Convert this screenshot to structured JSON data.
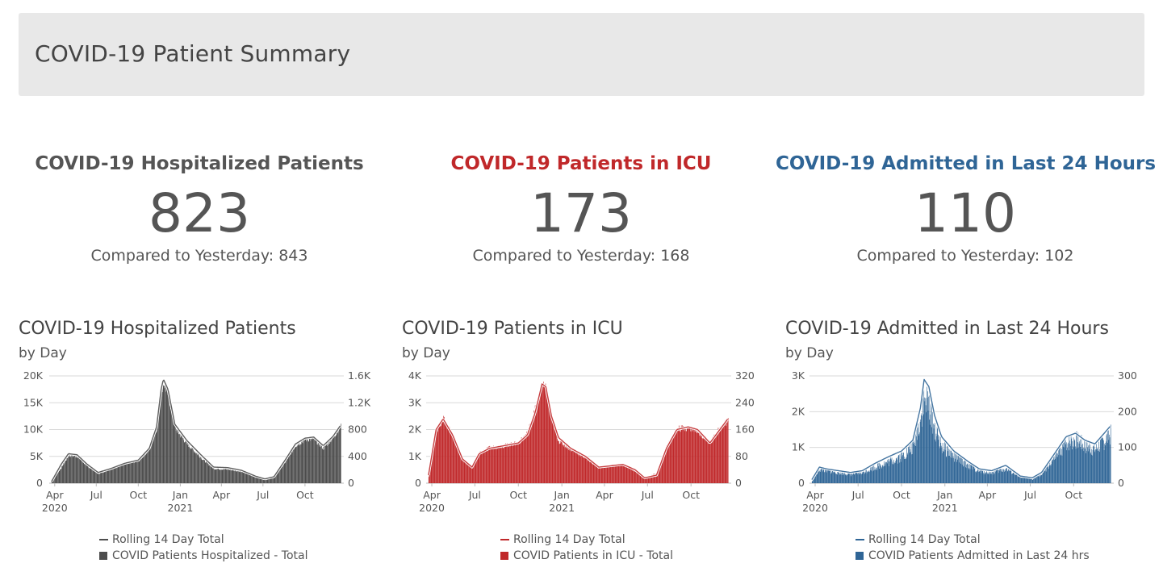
{
  "header": {
    "title": "COVID-19 Patient Summary"
  },
  "kpis": [
    {
      "title": "COVID-19 Hospitalized Patients",
      "value": "823",
      "compare": "Compared to Yesterday: 843",
      "color": "#555555"
    },
    {
      "title": "COVID-19 Patients in ICU",
      "value": "173",
      "compare": "Compared to Yesterday: 168",
      "color": "#c0282a"
    },
    {
      "title": "COVID-19 Admitted in Last 24 Hours",
      "value": "110",
      "compare": "Compared to Yesterday: 102",
      "color": "#2f6596"
    }
  ],
  "chart_data": [
    {
      "type": "bar",
      "title": "COVID-19 Hospitalized Patients",
      "subtitle": "by Day",
      "color": "#4d4d4d",
      "x_ticks": [
        "Apr",
        "Jul",
        "Oct",
        "Jan",
        "Apr",
        "Jul",
        "Oct"
      ],
      "x_years": [
        "2020",
        "2021"
      ],
      "y_left_ticks": [
        "0",
        "5K",
        "10K",
        "15K",
        "20K"
      ],
      "y_right_ticks": [
        "0",
        "400",
        "800",
        "1.2K",
        "1.6K"
      ],
      "y_left_range": [
        0,
        20000
      ],
      "y_right_range": [
        0,
        1600
      ],
      "series": [
        {
          "name": "Rolling 14 Day Total",
          "kind": "line",
          "axis": "left",
          "x": [
            "2020-03-25",
            "2020-04-15",
            "2020-05-01",
            "2020-05-20",
            "2020-06-10",
            "2020-07-05",
            "2020-08-01",
            "2020-09-01",
            "2020-10-01",
            "2020-10-25",
            "2020-11-10",
            "2020-11-20",
            "2020-11-25",
            "2020-12-05",
            "2020-12-20",
            "2021-01-15",
            "2021-02-15",
            "2021-03-15",
            "2021-04-15",
            "2021-05-15",
            "2021-06-15",
            "2021-07-05",
            "2021-07-25",
            "2021-08-20",
            "2021-09-10",
            "2021-10-01",
            "2021-10-20",
            "2021-11-10",
            "2021-12-01",
            "2021-12-18"
          ],
          "y": [
            300,
            3500,
            5500,
            5300,
            3600,
            2000,
            2700,
            3700,
            4300,
            6500,
            10500,
            17500,
            19400,
            17500,
            11000,
            8000,
            5300,
            3000,
            2900,
            2400,
            1300,
            800,
            1200,
            4500,
            7300,
            8400,
            8600,
            7000,
            8700,
            10800
          ]
        },
        {
          "name": "COVID Patients Hospitalized - Total",
          "kind": "bar",
          "axis": "right",
          "x": [
            "2020-03-25",
            "2020-04-15",
            "2020-05-01",
            "2020-05-20",
            "2020-06-10",
            "2020-07-05",
            "2020-08-01",
            "2020-09-01",
            "2020-10-01",
            "2020-10-25",
            "2020-11-10",
            "2020-11-20",
            "2020-11-25",
            "2020-12-05",
            "2020-12-20",
            "2021-01-15",
            "2021-02-15",
            "2021-03-15",
            "2021-04-15",
            "2021-05-15",
            "2021-06-15",
            "2021-07-05",
            "2021-07-25",
            "2021-08-20",
            "2021-09-10",
            "2021-10-01",
            "2021-10-20",
            "2021-11-10",
            "2021-12-01",
            "2021-12-18"
          ],
          "y": [
            20,
            230,
            410,
            400,
            260,
            140,
            210,
            290,
            330,
            500,
            820,
            1350,
            1500,
            1320,
            820,
            590,
            380,
            215,
            205,
            170,
            95,
            55,
            90,
            330,
            560,
            650,
            660,
            520,
            680,
            850
          ]
        }
      ]
    },
    {
      "type": "bar",
      "title": "COVID-19 Patients in ICU",
      "subtitle": "by Day",
      "color": "#c0282a",
      "x_ticks": [
        "Apr",
        "Jul",
        "Oct",
        "Jan",
        "Apr",
        "Jul",
        "Oct"
      ],
      "x_years": [
        "2020",
        "2021"
      ],
      "y_left_ticks": [
        "0",
        "1K",
        "2K",
        "3K",
        "4K"
      ],
      "y_right_ticks": [
        "0",
        "80",
        "160",
        "240",
        "320"
      ],
      "y_left_range": [
        0,
        4000
      ],
      "y_right_range": [
        0,
        320
      ],
      "series": [
        {
          "name": "Rolling 14 Day Total",
          "kind": "line",
          "axis": "left",
          "x": [
            "2020-03-25",
            "2020-04-10",
            "2020-04-25",
            "2020-05-15",
            "2020-06-05",
            "2020-06-25",
            "2020-07-10",
            "2020-08-01",
            "2020-09-01",
            "2020-10-01",
            "2020-10-20",
            "2020-11-05",
            "2020-11-20",
            "2020-11-28",
            "2020-12-10",
            "2020-12-25",
            "2021-01-20",
            "2021-02-20",
            "2021-03-20",
            "2021-04-15",
            "2021-05-10",
            "2021-06-05",
            "2021-06-25",
            "2021-07-20",
            "2021-08-10",
            "2021-09-01",
            "2021-09-25",
            "2021-10-15",
            "2021-11-10",
            "2021-12-01",
            "2021-12-18"
          ],
          "y": [
            300,
            2000,
            2400,
            1800,
            900,
            600,
            1100,
            1300,
            1400,
            1500,
            1800,
            2600,
            3700,
            3600,
            2500,
            1700,
            1300,
            1000,
            600,
            650,
            700,
            500,
            200,
            300,
            1300,
            2000,
            2100,
            2000,
            1500,
            2000,
            2400
          ]
        },
        {
          "name": "COVID Patients in ICU - Total",
          "kind": "bar",
          "axis": "right",
          "x": [
            "2020-03-25",
            "2020-04-10",
            "2020-04-25",
            "2020-05-15",
            "2020-06-05",
            "2020-06-25",
            "2020-07-10",
            "2020-08-01",
            "2020-09-01",
            "2020-10-01",
            "2020-10-20",
            "2020-11-05",
            "2020-11-20",
            "2020-11-28",
            "2020-12-10",
            "2020-12-25",
            "2021-01-20",
            "2021-02-20",
            "2021-03-20",
            "2021-04-15",
            "2021-05-10",
            "2021-06-05",
            "2021-06-25",
            "2021-07-20",
            "2021-08-10",
            "2021-09-01",
            "2021-09-25",
            "2021-10-15",
            "2021-11-10",
            "2021-12-01",
            "2021-12-18"
          ],
          "y": [
            20,
            155,
            195,
            140,
            70,
            50,
            90,
            105,
            112,
            120,
            150,
            220,
            290,
            280,
            190,
            125,
            100,
            75,
            45,
            52,
            55,
            35,
            15,
            30,
            110,
            162,
            165,
            155,
            120,
            165,
            185
          ]
        }
      ]
    },
    {
      "type": "bar",
      "title": "COVID-19 Admitted in Last 24 Hours",
      "subtitle": "by Day",
      "color": "#2f6596",
      "x_ticks": [
        "Apr",
        "Jul",
        "Oct",
        "Jan",
        "Apr",
        "Jul",
        "Oct"
      ],
      "x_years": [
        "2020",
        "2021"
      ],
      "y_left_ticks": [
        "0",
        "1K",
        "2K",
        "3K"
      ],
      "y_right_ticks": [
        "0",
        "100",
        "200",
        "300"
      ],
      "y_left_range": [
        0,
        3000
      ],
      "y_right_range": [
        0,
        300
      ],
      "series": [
        {
          "name": "Rolling 14 Day Total",
          "kind": "line",
          "axis": "left",
          "x": [
            "2020-03-25",
            "2020-04-10",
            "2020-04-25",
            "2020-05-20",
            "2020-06-15",
            "2020-07-10",
            "2020-08-05",
            "2020-09-05",
            "2020-10-01",
            "2020-10-25",
            "2020-11-10",
            "2020-11-18",
            "2020-11-28",
            "2020-12-10",
            "2020-12-25",
            "2021-01-20",
            "2021-02-20",
            "2021-03-15",
            "2021-04-10",
            "2021-05-10",
            "2021-06-10",
            "2021-07-05",
            "2021-07-25",
            "2021-08-20",
            "2021-09-15",
            "2021-10-05",
            "2021-10-25",
            "2021-11-15",
            "2021-12-05",
            "2021-12-18"
          ],
          "y": [
            100,
            450,
            400,
            350,
            300,
            350,
            550,
            750,
            900,
            1200,
            2100,
            2900,
            2700,
            1900,
            1300,
            900,
            600,
            400,
            350,
            500,
            200,
            150,
            300,
            800,
            1300,
            1400,
            1200,
            1100,
            1400,
            1600
          ]
        },
        {
          "name": "COVID Patients Admitted in Last 24 hrs",
          "kind": "bar",
          "axis": "right",
          "x": [
            "2020-03-25",
            "2020-04-10",
            "2020-04-25",
            "2020-05-20",
            "2020-06-15",
            "2020-07-10",
            "2020-08-05",
            "2020-09-05",
            "2020-10-01",
            "2020-10-25",
            "2020-11-10",
            "2020-11-18",
            "2020-11-28",
            "2020-12-10",
            "2020-12-25",
            "2021-01-20",
            "2021-02-20",
            "2021-03-15",
            "2021-04-10",
            "2021-05-10",
            "2021-06-10",
            "2021-07-05",
            "2021-07-25",
            "2021-08-20",
            "2021-09-15",
            "2021-10-05",
            "2021-10-25",
            "2021-11-15",
            "2021-12-05",
            "2021-12-18"
          ],
          "y": [
            5,
            40,
            35,
            30,
            25,
            30,
            45,
            60,
            75,
            100,
            180,
            230,
            220,
            150,
            105,
            75,
            50,
            33,
            30,
            40,
            18,
            12,
            25,
            68,
            112,
            122,
            105,
            95,
            120,
            135
          ]
        }
      ]
    }
  ]
}
